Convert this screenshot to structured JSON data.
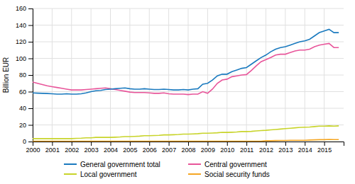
{
  "chart_data": {
    "type": "line",
    "y_label": "Billion EUR",
    "x": [
      2000,
      2000.25,
      2000.5,
      2000.75,
      2001,
      2001.25,
      2001.5,
      2001.75,
      2002,
      2002.25,
      2002.5,
      2002.75,
      2003,
      2003.25,
      2003.5,
      2003.75,
      2004,
      2004.25,
      2004.5,
      2004.75,
      2005,
      2005.25,
      2005.5,
      2005.75,
      2006,
      2006.25,
      2006.5,
      2006.75,
      2007,
      2007.25,
      2007.5,
      2007.75,
      2008,
      2008.25,
      2008.5,
      2008.75,
      2009,
      2009.25,
      2009.5,
      2009.75,
      2010,
      2010.25,
      2010.5,
      2010.75,
      2011,
      2011.25,
      2011.5,
      2011.75,
      2012,
      2012.25,
      2012.5,
      2012.75,
      2013,
      2013.25,
      2013.5,
      2013.75,
      2014,
      2014.25,
      2014.5,
      2014.75,
      2015,
      2015.25,
      2015.5,
      2015.75
    ],
    "xlim": [
      2000,
      2016
    ],
    "xticks": [
      2000,
      2001,
      2002,
      2003,
      2004,
      2005,
      2006,
      2007,
      2008,
      2009,
      2010,
      2011,
      2012,
      2013,
      2014,
      2015
    ],
    "ylim": [
      0,
      160
    ],
    "yticks": [
      0,
      20,
      40,
      60,
      80,
      100,
      120,
      140,
      160
    ],
    "grid": true,
    "legend": "bottom",
    "series": [
      {
        "name": "General government total",
        "color": "#1a7abf",
        "values": [
          58.5,
          58.2,
          58.0,
          57.8,
          57.5,
          57.0,
          57.0,
          57.5,
          57.0,
          57.0,
          57.5,
          58.5,
          60.0,
          61.0,
          61.5,
          62.5,
          63.0,
          63.5,
          64.0,
          64.5,
          63.5,
          63.0,
          63.0,
          63.5,
          63.0,
          62.5,
          62.5,
          63.0,
          62.5,
          62.0,
          62.0,
          62.5,
          62.0,
          63.0,
          63.5,
          69.0,
          70.0,
          74.0,
          79.0,
          81.0,
          81.0,
          84.0,
          86.0,
          88.0,
          89.0,
          93.0,
          97.0,
          101.0,
          104.0,
          108.0,
          111.0,
          113.0,
          114.0,
          116.0,
          118.0,
          120.0,
          121.0,
          123.0,
          127.0,
          131.0,
          133.0,
          135.0,
          131.0,
          131.0
        ]
      },
      {
        "name": "Central government",
        "color": "#e8559a",
        "values": [
          71.5,
          70.0,
          68.5,
          67.0,
          66.0,
          65.0,
          64.0,
          63.0,
          62.0,
          62.0,
          62.0,
          62.5,
          63.0,
          63.5,
          64.0,
          64.5,
          63.5,
          62.5,
          61.5,
          60.5,
          59.5,
          59.0,
          59.0,
          59.0,
          58.5,
          58.0,
          58.0,
          58.5,
          57.5,
          57.0,
          57.0,
          57.0,
          56.5,
          57.0,
          57.0,
          60.0,
          58.0,
          63.0,
          70.0,
          74.0,
          75.0,
          78.0,
          79.0,
          80.0,
          80.5,
          85.5,
          91.0,
          96.0,
          98.5,
          101.0,
          104.0,
          105.0,
          105.0,
          107.0,
          109.0,
          110.0,
          110.0,
          111.0,
          114.0,
          116.0,
          117.0,
          118.0,
          113.0,
          113.0
        ]
      },
      {
        "name": "Local government",
        "color": "#c8d42a",
        "values": [
          3.5,
          3.5,
          3.5,
          3.5,
          3.5,
          3.5,
          3.5,
          3.5,
          3.5,
          3.8,
          4.0,
          4.5,
          4.5,
          5.0,
          5.0,
          5.0,
          5.0,
          5.2,
          5.5,
          6.0,
          6.0,
          6.2,
          6.5,
          7.0,
          7.0,
          7.2,
          7.5,
          8.0,
          8.0,
          8.2,
          8.5,
          9.0,
          9.0,
          9.2,
          9.5,
          10.0,
          10.0,
          10.2,
          10.5,
          11.0,
          11.0,
          11.2,
          11.5,
          12.0,
          12.0,
          12.2,
          12.8,
          13.2,
          13.5,
          14.0,
          14.5,
          15.0,
          15.5,
          16.0,
          16.5,
          17.0,
          17.2,
          17.5,
          18.0,
          18.5,
          18.5,
          18.8,
          18.5,
          18.8
        ]
      },
      {
        "name": "Social security funds",
        "color": "#f5a623",
        "values": [
          0.3,
          0.3,
          0.3,
          0.3,
          0.3,
          0.3,
          0.3,
          0.3,
          0.3,
          0.3,
          0.3,
          0.3,
          0.3,
          0.3,
          0.3,
          0.3,
          0.3,
          0.3,
          0.3,
          0.3,
          0.3,
          0.3,
          0.3,
          0.3,
          0.3,
          0.3,
          0.3,
          0.3,
          0.3,
          0.3,
          0.3,
          0.3,
          0.3,
          0.3,
          0.3,
          0.3,
          0.3,
          0.3,
          0.3,
          0.3,
          0.3,
          0.3,
          0.3,
          0.3,
          0.3,
          0.3,
          0.3,
          0.3,
          1.0,
          1.0,
          1.2,
          1.3,
          1.3,
          1.5,
          1.5,
          1.5,
          1.5,
          1.8,
          2.0,
          2.2,
          2.2,
          2.5,
          2.3,
          2.3
        ]
      }
    ]
  }
}
